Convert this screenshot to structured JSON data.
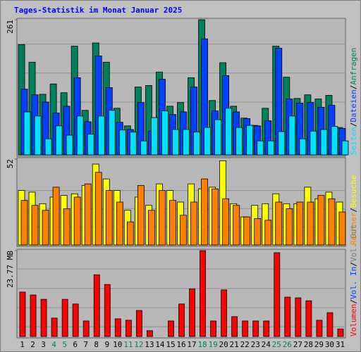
{
  "chart_data": {
    "type": "bar",
    "title": "Tages-Statistik im Monat Januar 2025",
    "title_color": "#0000ff",
    "categories": [
      "1",
      "2",
      "3",
      "4",
      "5",
      "6",
      "7",
      "8",
      "9",
      "10",
      "11",
      "12",
      "13",
      "14",
      "15",
      "16",
      "17",
      "18",
      "19",
      "20",
      "21",
      "22",
      "23",
      "24",
      "25",
      "26",
      "27",
      "28",
      "29",
      "30",
      "31"
    ],
    "category_colors": [
      "#000000",
      "#000000",
      "#000000",
      "#00805c",
      "#00805c",
      "#000000",
      "#000000",
      "#000000",
      "#000000",
      "#000000",
      "#00805c",
      "#00805c",
      "#000000",
      "#000000",
      "#000000",
      "#000000",
      "#000000",
      "#00805c",
      "#00805c",
      "#000000",
      "#000000",
      "#000000",
      "#000000",
      "#000000",
      "#00805c",
      "#00805c",
      "#000000",
      "#000000",
      "#000000",
      "#000000",
      "#000000"
    ],
    "separator": "/",
    "panels": [
      {
        "ylim": [
          0,
          261
        ],
        "yticks": [
          261
        ],
        "grid_lines": [
          214,
          158,
          102,
          46
        ],
        "series": [
          {
            "name": "Anfragen",
            "color": "#00805c",
            "values": [
              213,
              179,
              117,
              137,
              120,
              210,
              86,
              216,
              179,
              90,
              56,
              131,
              134,
              160,
              94,
              101,
              149,
              261,
              105,
              178,
              94,
              71,
              57,
              90,
              210,
              150,
              109,
              116,
              108,
              115,
              53
            ]
          },
          {
            "name": "Dateien",
            "color": "#0040ff",
            "values": [
              127,
              116,
              102,
              81,
              94,
              149,
              64,
              191,
              130,
              63,
              49,
              101,
              46,
              146,
              78,
              83,
              131,
              224,
              85,
              153,
              83,
              70,
              56,
              66,
              206,
              108,
              100,
              101,
              92,
              96,
              51
            ]
          },
          {
            "name": "Seiten",
            "color": "#00e0ff",
            "values": [
              83,
              75,
              31,
              56,
              38,
              75,
              40,
              75,
              86,
              48,
              44,
              27,
              72,
              85,
              49,
              49,
              44,
              53,
              68,
              90,
              53,
              57,
              27,
              27,
              45,
              75,
              31,
              46,
              49,
              55,
              27
            ]
          }
        ]
      },
      {
        "ylim": [
          0,
          52
        ],
        "yticks": [
          52
        ],
        "grid_lines": [
          33,
          22,
          11
        ],
        "series": [
          {
            "name": "Besuche",
            "color": "#ffff00",
            "values": [
              33,
              32,
              25,
              29,
              30,
              31,
              36,
              49,
              40,
              33,
              21,
              29,
              24,
              37,
              33,
              26,
              37,
              34,
              35,
              51,
              25,
              17,
              24,
              25,
              31,
              25,
              25,
              35,
              28,
              32,
              26
            ]
          },
          {
            "name": "Rechner",
            "color": "#ff8000",
            "values": [
              27,
              24,
              21,
              35,
              22,
              29,
              37,
              44,
              33,
              26,
              14,
              36,
              21,
              33,
              27,
              18,
              26,
              40,
              34,
              28,
              24,
              17,
              16,
              15,
              26,
              22,
              26,
              26,
              30,
              28,
              20
            ]
          }
        ]
      },
      {
        "ylim": [
          0,
          23.77
        ],
        "yticks": [
          {
            "value": 23.77,
            "label": "23.77 MB"
          }
        ],
        "grid_lines": [
          18.7,
          13.3,
          8.0,
          2.7
        ],
        "series": [
          {
            "name": "Volumen",
            "color": "#ff0000",
            "values": [
              12.3,
              11.5,
              10.3,
              5.1,
              10.3,
              9.0,
              4.3,
              17.1,
              14.4,
              4.9,
              4.5,
              7.2,
              1.6,
              0,
              4.3,
              9.0,
              13.2,
              23.77,
              4.3,
              12.9,
              5.5,
              4.3,
              4.3,
              4.3,
              23.2,
              10.9,
              10.7,
              9.9,
              4.5,
              6.6,
              2.1
            ]
          }
        ],
        "extra_legend": [
          {
            "name": "Vol. In",
            "color": "#0040ff"
          },
          {
            "name": "Vol. Out",
            "color": "#708070"
          }
        ]
      }
    ]
  }
}
